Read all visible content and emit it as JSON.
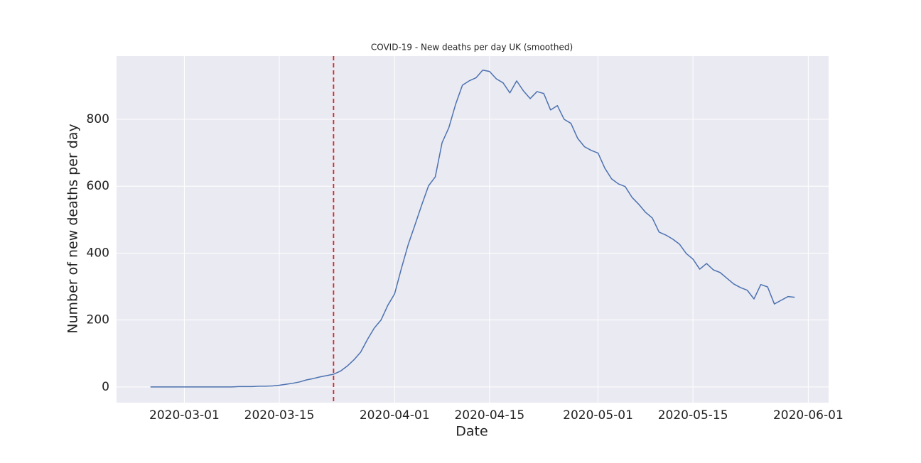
{
  "chart_data": {
    "type": "line",
    "title": "COVID-19 - New deaths per day UK (smoothed)",
    "x_label": "Date",
    "y_label": "Number of new deaths per day",
    "x": [
      "2020-02-25",
      "2020-02-26",
      "2020-02-27",
      "2020-02-28",
      "2020-02-29",
      "2020-03-01",
      "2020-03-02",
      "2020-03-03",
      "2020-03-04",
      "2020-03-05",
      "2020-03-06",
      "2020-03-07",
      "2020-03-08",
      "2020-03-09",
      "2020-03-10",
      "2020-03-11",
      "2020-03-12",
      "2020-03-13",
      "2020-03-14",
      "2020-03-15",
      "2020-03-16",
      "2020-03-17",
      "2020-03-18",
      "2020-03-19",
      "2020-03-20",
      "2020-03-21",
      "2020-03-22",
      "2020-03-23",
      "2020-03-24",
      "2020-03-25",
      "2020-03-26",
      "2020-03-27",
      "2020-03-28",
      "2020-03-29",
      "2020-03-30",
      "2020-03-31",
      "2020-04-01",
      "2020-04-02",
      "2020-04-03",
      "2020-04-04",
      "2020-04-05",
      "2020-04-06",
      "2020-04-07",
      "2020-04-08",
      "2020-04-09",
      "2020-04-10",
      "2020-04-11",
      "2020-04-12",
      "2020-04-13",
      "2020-04-14",
      "2020-04-15",
      "2020-04-16",
      "2020-04-17",
      "2020-04-18",
      "2020-04-19",
      "2020-04-20",
      "2020-04-21",
      "2020-04-22",
      "2020-04-23",
      "2020-04-24",
      "2020-04-25",
      "2020-04-26",
      "2020-04-27",
      "2020-04-28",
      "2020-04-29",
      "2020-04-30",
      "2020-05-01",
      "2020-05-02",
      "2020-05-03",
      "2020-05-04",
      "2020-05-05",
      "2020-05-06",
      "2020-05-07",
      "2020-05-08",
      "2020-05-09",
      "2020-05-10",
      "2020-05-11",
      "2020-05-12",
      "2020-05-13",
      "2020-05-14",
      "2020-05-15",
      "2020-05-16",
      "2020-05-17",
      "2020-05-18",
      "2020-05-19",
      "2020-05-20",
      "2020-05-21",
      "2020-05-22",
      "2020-05-23",
      "2020-05-24",
      "2020-05-25",
      "2020-05-26",
      "2020-05-27",
      "2020-05-28",
      "2020-05-29",
      "2020-05-30"
    ],
    "series": [
      {
        "color": "#4c72b0",
        "values": [
          0,
          0,
          0,
          0,
          0,
          0,
          0,
          0,
          0,
          0,
          0,
          0,
          0,
          1,
          1,
          1,
          2,
          2,
          3,
          5,
          8,
          11,
          15,
          21,
          25,
          30,
          34,
          38,
          47,
          62,
          81,
          104,
          142,
          176,
          200,
          244,
          278,
          354,
          425,
          484,
          544,
          601,
          628,
          730,
          775,
          845,
          902,
          915,
          924,
          947,
          943,
          921,
          909,
          879,
          915,
          885,
          862,
          883,
          877,
          828,
          841,
          800,
          788,
          743,
          718,
          707,
          699,
          654,
          622,
          607,
          599,
          567,
          546,
          522,
          505,
          463,
          454,
          442,
          427,
          399,
          382,
          352,
          369,
          350,
          342,
          325,
          308,
          297,
          289,
          263,
          306,
          299,
          248,
          259,
          270,
          268
        ]
      }
    ],
    "xlim": [
      "2020-02-20",
      "2020-06-04"
    ],
    "xticks": [
      "2020-03-01",
      "2020-03-15",
      "2020-04-01",
      "2020-04-15",
      "2020-05-01",
      "2020-05-15",
      "2020-06-01"
    ],
    "ylim": [
      -47,
      989
    ],
    "yticks": [
      0,
      200,
      400,
      600,
      800
    ],
    "grid": true,
    "vline": {
      "x": "2020-03-23",
      "color": "#d62728"
    }
  }
}
